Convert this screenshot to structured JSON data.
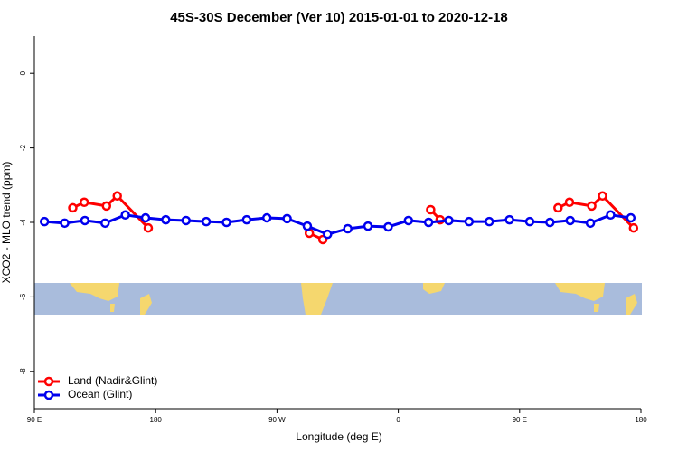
{
  "chart_data": {
    "type": "line",
    "title": "45S-30S December (Ver 10)   2015-01-01 to 2020-12-18",
    "x_label": "Longitude (deg E)",
    "y_label": "XCO2 - MLO trend (ppm)",
    "xlim": [
      90,
      540
    ],
    "xticks": [
      {
        "value": 90,
        "label": "90 E"
      },
      {
        "value": 180,
        "label": "180"
      },
      {
        "value": 270,
        "label": "90 W"
      },
      {
        "value": 360,
        "label": "0"
      },
      {
        "value": 450,
        "label": "90 E"
      },
      {
        "value": 540,
        "label": "180"
      }
    ],
    "ylim": [
      -9,
      1
    ],
    "yticks": [
      0,
      -2,
      -4,
      -6,
      -8
    ],
    "legend": "bottom-left",
    "series": [
      {
        "name": "Land (Nadir&Glint)",
        "color": "#ff0000",
        "x": [
          118.5,
          127,
          143.5,
          151.5,
          174.5,
          null,
          294,
          304,
          null,
          384,
          391,
          null,
          478.5,
          487,
          503.5,
          511.5,
          534.5
        ],
        "values": [
          -3.61,
          -3.46,
          -3.56,
          -3.29,
          -4.15,
          null,
          -4.29,
          -4.46,
          null,
          -3.66,
          -3.93,
          null,
          -3.61,
          -3.46,
          -3.56,
          -3.29,
          -4.15
        ]
      },
      {
        "name": "Ocean (Glint)",
        "color": "#0000ee",
        "x": [
          97.5,
          112.5,
          127.5,
          142.5,
          157.5,
          172.5,
          187.5,
          202.5,
          217.5,
          232.5,
          247.5,
          262.5,
          277.5,
          292.5,
          307.5,
          322.5,
          337.5,
          352.5,
          367.5,
          382.5,
          397.5,
          412.5,
          427.5,
          442.5,
          457.5,
          472.5,
          487.5,
          502.5,
          517.5,
          532.5
        ],
        "values": [
          -3.98,
          -4.02,
          -3.95,
          -4.02,
          -3.8,
          -3.88,
          -3.93,
          -3.95,
          -3.98,
          -4.0,
          -3.93,
          -3.88,
          -3.9,
          -4.1,
          -4.32,
          -4.17,
          -4.1,
          -4.12,
          -3.95,
          -4.0,
          -3.95,
          -3.98,
          -3.98,
          -3.93,
          -3.98,
          -4.0,
          -3.95,
          -4.02,
          -3.8,
          -3.88
        ]
      }
    ]
  }
}
